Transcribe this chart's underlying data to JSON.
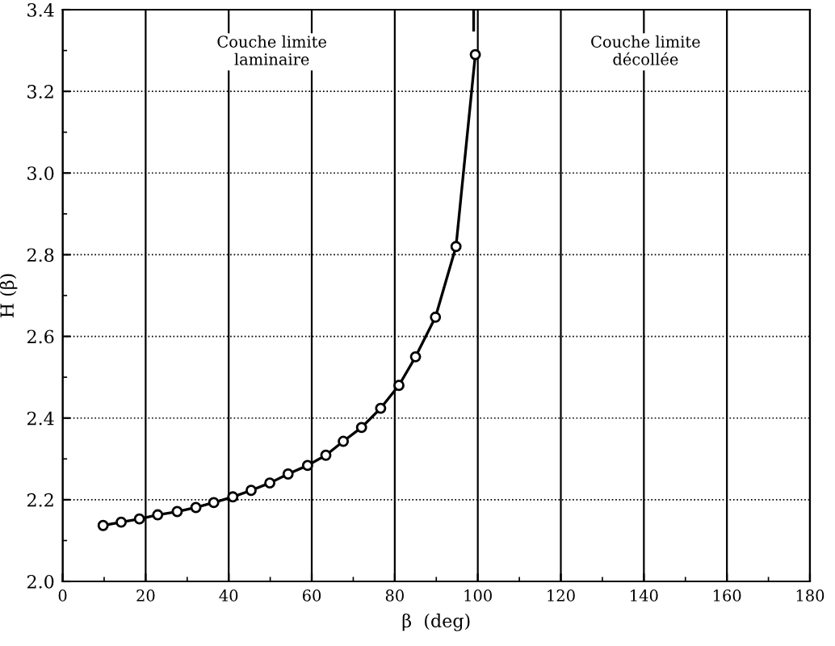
{
  "chart_data": {
    "type": "line",
    "xlabel": "β  (deg)",
    "ylabel": "H (β)",
    "series": [
      {
        "color": "#000000",
        "marker": "circle",
        "x": [
          9.75,
          14.1,
          18.5,
          22.9,
          27.6,
          32.1,
          36.4,
          41,
          45.4,
          49.9,
          54.3,
          59,
          63.4,
          67.6,
          72,
          76.6,
          81,
          85,
          89.8,
          94.75,
          99.4
        ],
        "values": [
          2.137,
          2.145,
          2.153,
          2.163,
          2.171,
          2.181,
          2.193,
          2.207,
          2.223,
          2.241,
          2.263,
          2.284,
          2.309,
          2.343,
          2.377,
          2.424,
          2.48,
          2.55,
          2.647,
          2.82,
          3.29
        ]
      },
      {
        "color": "#000000",
        "marker": "none",
        "x": [
          99,
          99
        ],
        "values": [
          3.35,
          3.4
        ]
      }
    ],
    "xlim": [
      0,
      180
    ],
    "xticks": [
      0,
      20,
      40,
      60,
      80,
      100,
      120,
      140,
      160,
      180
    ],
    "ylim": [
      2.0,
      3.4
    ],
    "yticks": [
      {
        "value": 2.0,
        "label": "2.0"
      },
      {
        "value": 2.2,
        "label": "2.2"
      },
      {
        "value": 2.4,
        "label": "2.4"
      },
      {
        "value": 2.6,
        "label": "2.6"
      },
      {
        "value": 2.8,
        "label": "2.8"
      },
      {
        "value": 3.0,
        "label": "3.0"
      },
      {
        "value": 3.2,
        "label": "3.2"
      },
      {
        "value": 3.4,
        "label": "3.4"
      }
    ],
    "grid": true,
    "annotations": [
      "Couche limite\nlaminaire",
      "Couche limite\ndécollée"
    ]
  }
}
